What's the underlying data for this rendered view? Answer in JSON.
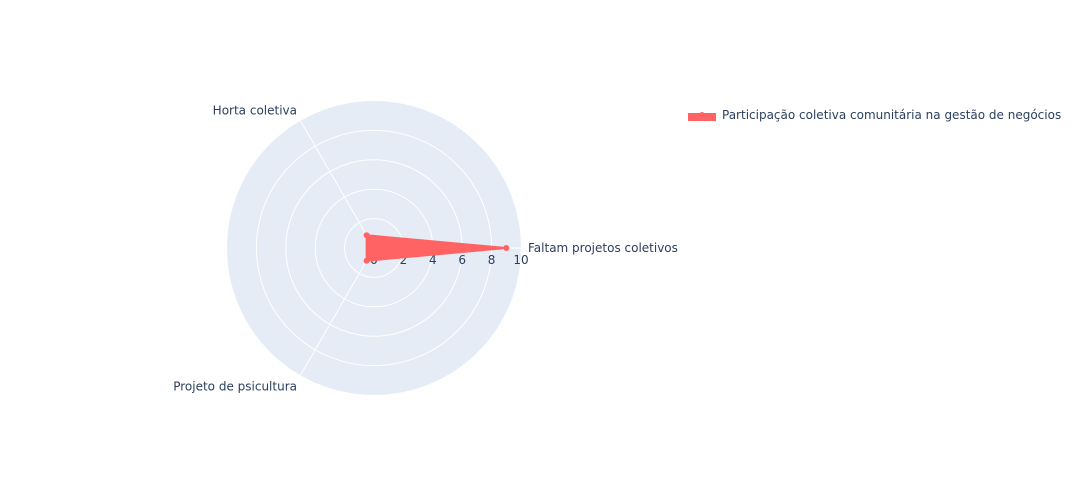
{
  "chart_data": {
    "type": "radar",
    "categories": [
      "Faltam projetos coletivos",
      "Horta coletiva",
      "Projeto de psicultura"
    ],
    "series": [
      {
        "name": "Participação coletiva comunitária na gestão de negócios",
        "values": [
          9,
          1,
          1
        ],
        "color": "#ff6363"
      }
    ],
    "radial_range": [
      0,
      10
    ],
    "radial_ticks": [
      0,
      2,
      4,
      6,
      8,
      10
    ],
    "radial_tick_labels": [
      "0",
      "2",
      "4",
      "6",
      "8",
      "10"
    ],
    "background_color": "#e5ecf6",
    "grid_color": "#ffffff",
    "legend_position": "top-right"
  }
}
